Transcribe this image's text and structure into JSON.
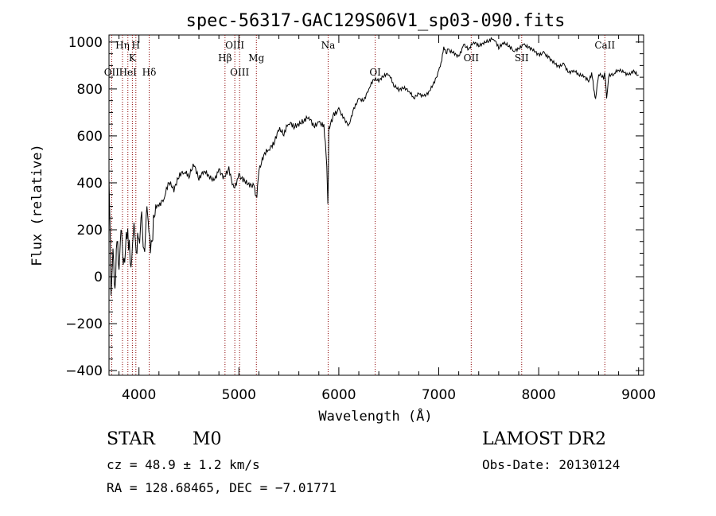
{
  "chart_data": {
    "type": "line",
    "title": "spec-56317-GAC129S06V1_sp03-090.fits",
    "xlabel": "Wavelength (Å)",
    "ylabel": "Flux (relative)",
    "xlim": [
      3700,
      9050
    ],
    "ylim": [
      -420,
      1030
    ],
    "xticks": [
      4000,
      5000,
      6000,
      7000,
      8000,
      9000
    ],
    "yticks": [
      -400,
      -200,
      0,
      200,
      400,
      600,
      800,
      1000
    ],
    "tick_labels_x": [
      "4000",
      "5000",
      "6000",
      "7000",
      "8000",
      "9000"
    ],
    "tick_labels_y": [
      "−400",
      "−200",
      "0",
      "200",
      "400",
      "600",
      "800",
      "1000"
    ],
    "series": [
      {
        "x": [
          3700,
          3720,
          3740,
          3760,
          3780,
          3800,
          3820,
          3850,
          3880,
          3920,
          3950,
          3980,
          4000,
          4020,
          4050,
          4080,
          4100,
          4130,
          4160,
          4200,
          4250,
          4300,
          4350,
          4400,
          4450,
          4500,
          4550,
          4600,
          4650,
          4700,
          4750,
          4800,
          4850,
          4900,
          4950,
          5000,
          5050,
          5100,
          5150,
          5180,
          5200,
          5250,
          5300,
          5350,
          5400,
          5450,
          5500,
          5550,
          5600,
          5650,
          5700,
          5750,
          5800,
          5850,
          5880,
          5890,
          5895,
          5900,
          5950,
          6000,
          6050,
          6100,
          6150,
          6200,
          6250,
          6300,
          6350,
          6400,
          6450,
          6500,
          6550,
          6600,
          6650,
          6700,
          6750,
          6800,
          6850,
          6900,
          6950,
          7000,
          7030,
          7050,
          7080,
          7100,
          7150,
          7200,
          7250,
          7300,
          7350,
          7400,
          7450,
          7500,
          7550,
          7600,
          7650,
          7700,
          7750,
          7800,
          7850,
          7900,
          7950,
          8000,
          8050,
          8100,
          8150,
          8200,
          8250,
          8300,
          8350,
          8400,
          8450,
          8500,
          8530,
          8550,
          8570,
          8600,
          8650,
          8660,
          8680,
          8700,
          8750,
          8800,
          8850,
          8900,
          8950,
          9000
        ],
        "y": [
          420,
          -80,
          120,
          -50,
          150,
          30,
          200,
          80,
          160,
          40,
          230,
          100,
          160,
          250,
          120,
          300,
          190,
          150,
          260,
          300,
          330,
          400,
          360,
          420,
          440,
          420,
          470,
          410,
          450,
          430,
          410,
          460,
          430,
          470,
          380,
          440,
          420,
          400,
          390,
          340,
          450,
          520,
          540,
          560,
          620,
          600,
          650,
          630,
          640,
          660,
          680,
          640,
          660,
          650,
          470,
          310,
          420,
          640,
          700,
          720,
          680,
          650,
          720,
          760,
          750,
          800,
          840,
          830,
          850,
          860,
          810,
          790,
          800,
          790,
          760,
          780,
          770,
          790,
          830,
          880,
          920,
          980,
          950,
          970,
          960,
          940,
          990,
          970,
          1000,
          980,
          990,
          1000,
          1010,
          970,
          990,
          980,
          960,
          970,
          990,
          980,
          970,
          950,
          960,
          940,
          920,
          900,
          910,
          870,
          880,
          860,
          850,
          830,
          870,
          800,
          760,
          860,
          840,
          870,
          760,
          850,
          860,
          880,
          870,
          860,
          880,
          860
        ]
      }
    ],
    "spectral_lines": [
      {
        "label": "OII",
        "x": 3727,
        "row": 3
      },
      {
        "label": "Hη",
        "x": 3835,
        "row": 1
      },
      {
        "label": "HeI",
        "x": 3889,
        "row": 3
      },
      {
        "label": "K",
        "x": 3934,
        "row": 2
      },
      {
        "label": "H",
        "x": 3969,
        "row": 1
      },
      {
        "label": "Hδ",
        "x": 4102,
        "row": 3
      },
      {
        "label": "Hβ",
        "x": 4861,
        "row": 2
      },
      {
        "label": "OIII",
        "x": 4959,
        "row": 1
      },
      {
        "label": "OIII",
        "x": 5007,
        "row": 3
      },
      {
        "label": "Mg",
        "x": 5175,
        "row": 2
      },
      {
        "label": "Na",
        "x": 5893,
        "row": 1
      },
      {
        "label": "OI",
        "x": 6364,
        "row": 3
      },
      {
        "label": "OII",
        "x": 7325,
        "row": 2
      },
      {
        "label": "SII",
        "x": 7830,
        "row": 2
      },
      {
        "label": "CaII",
        "x": 8662,
        "row": 1
      }
    ]
  },
  "info": {
    "class_label": "STAR",
    "subclass": "M0",
    "survey": "LAMOST DR2",
    "redshift": "cz = 48.9 ± 1.2 km/s",
    "obs_date": "Obs-Date: 20130124",
    "coords": "RA = 128.68465, DEC =  −7.01771"
  },
  "colors": {
    "spectrum": "#000000",
    "line_marker": "#8b0000",
    "axis": "#000000",
    "background": "#ffffff"
  }
}
